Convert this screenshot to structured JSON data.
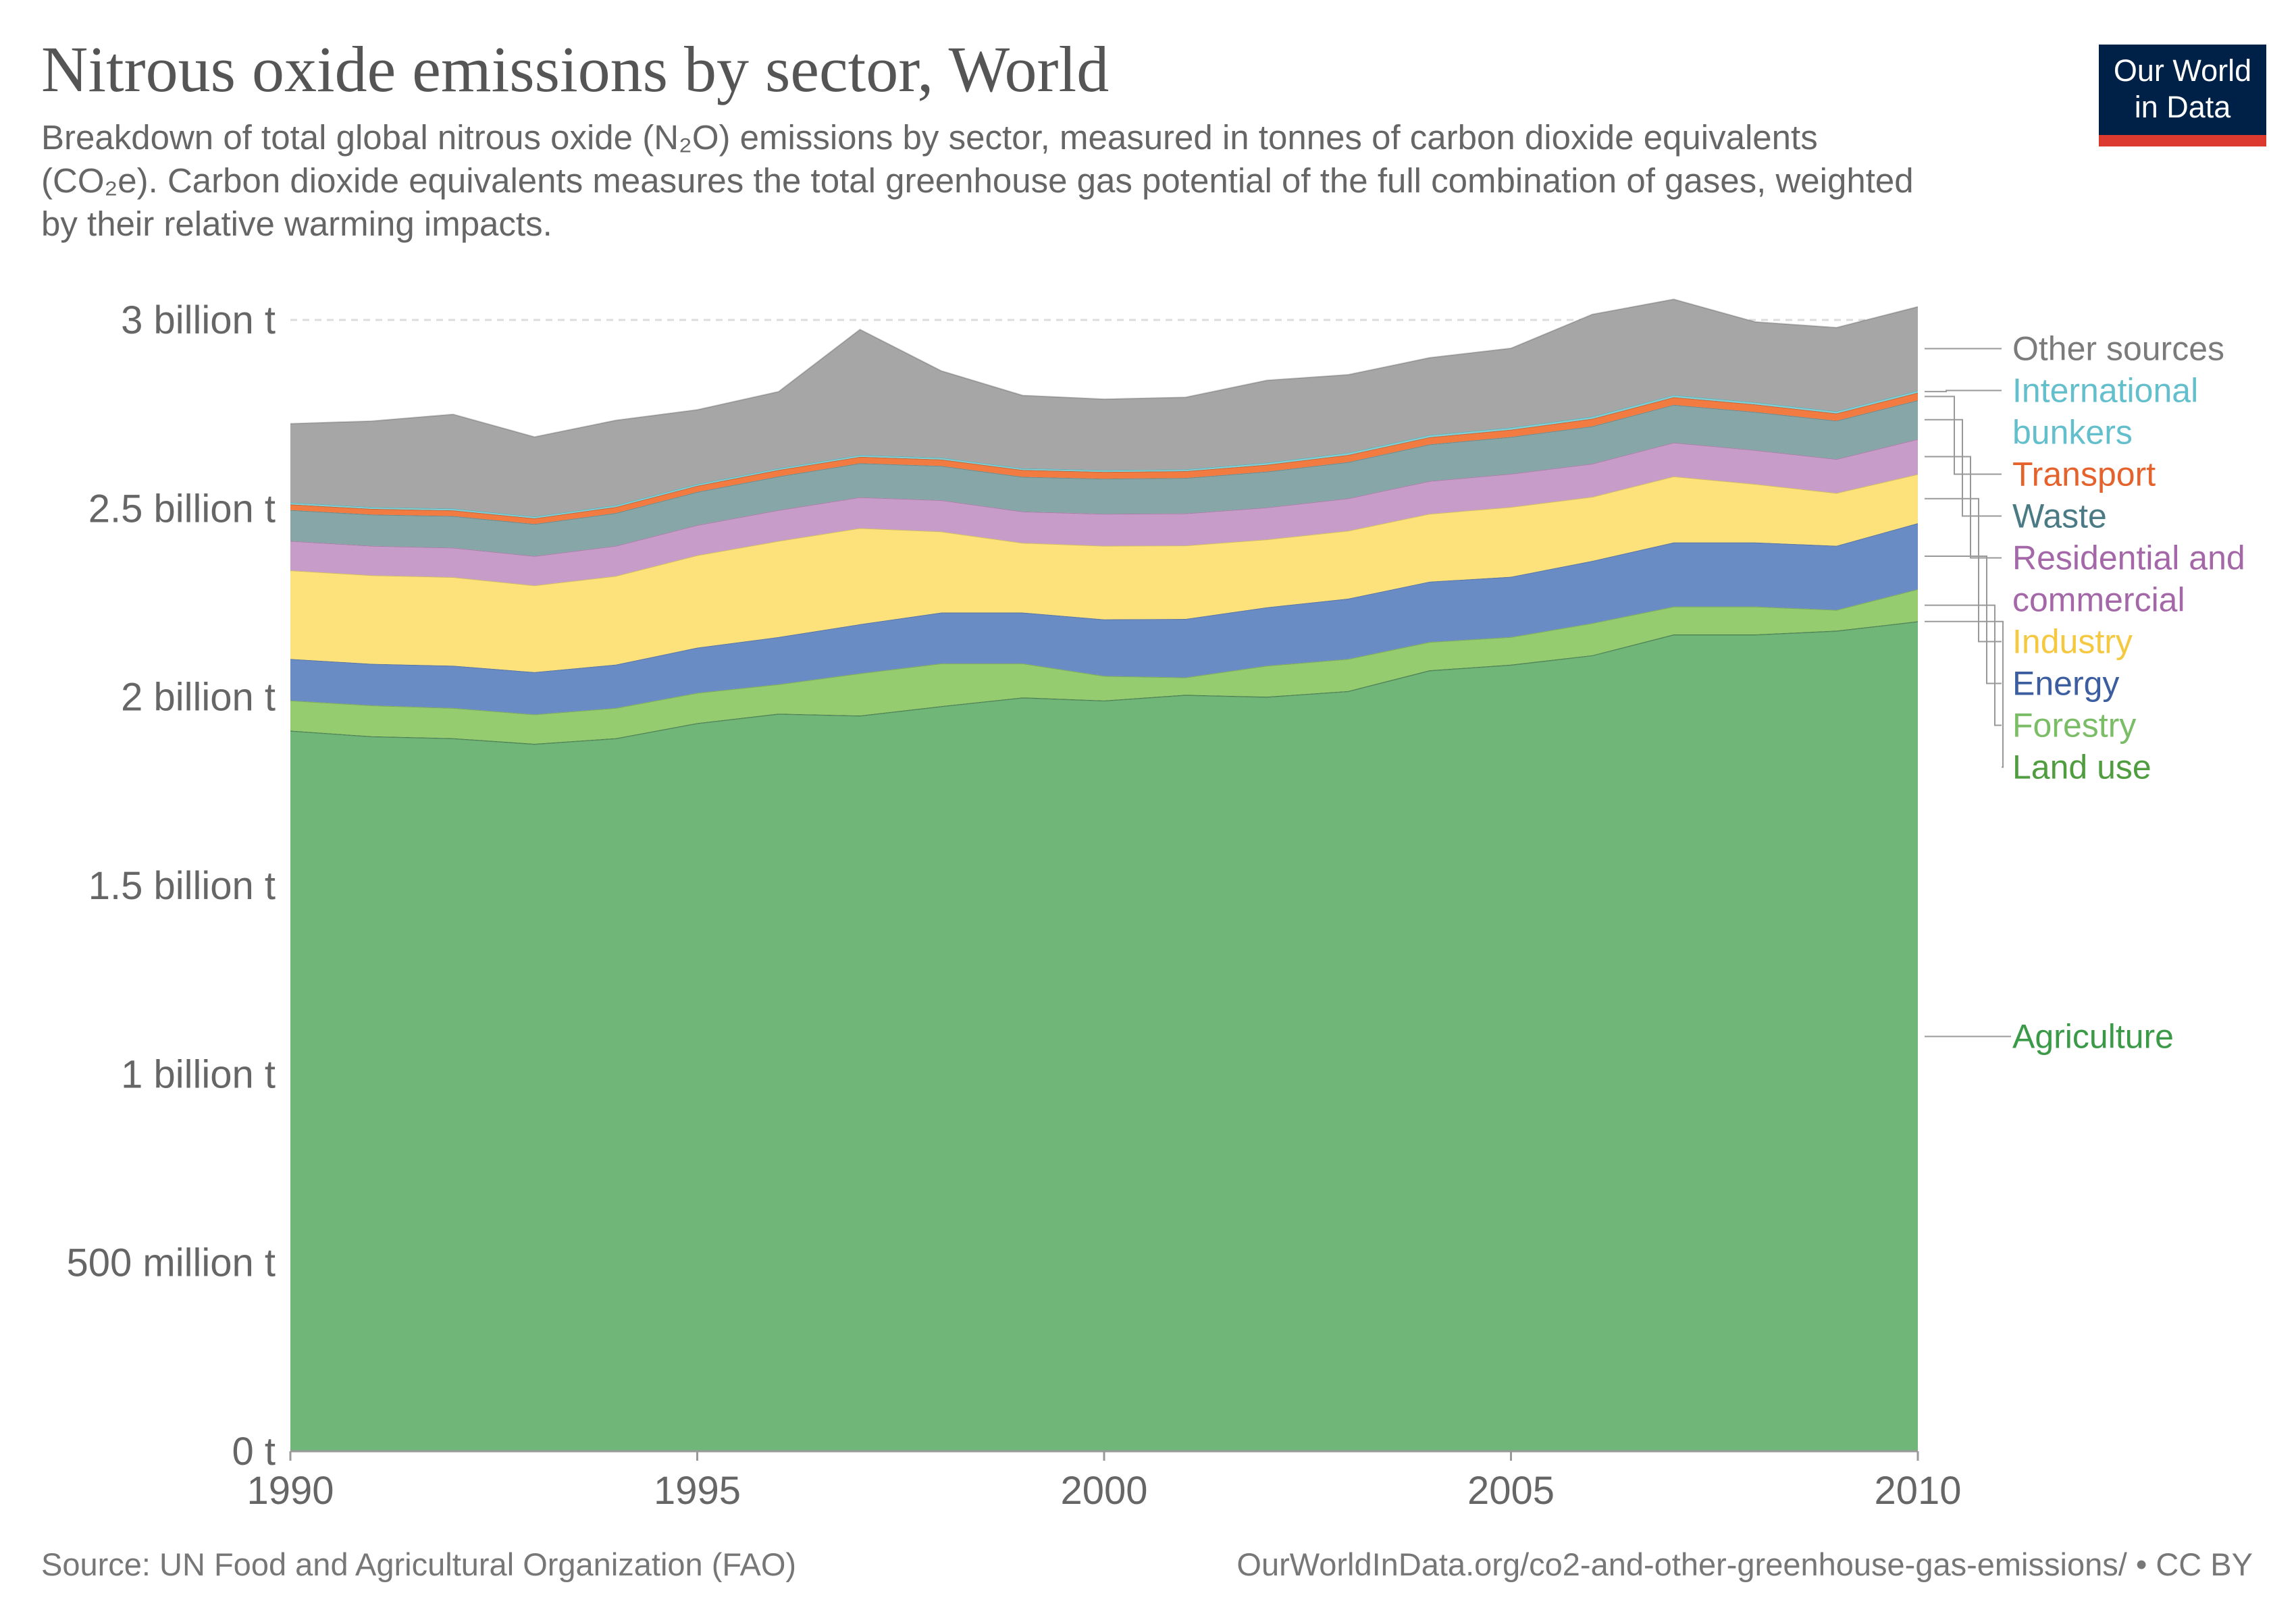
{
  "header": {
    "title": "Nitrous oxide emissions by sector, World",
    "subtitle": "Breakdown of total global nitrous oxide (N₂O) emissions by sector, measured in tonnes of carbon dioxide equivalents (CO₂e). Carbon dioxide equivalents measures the total greenhouse gas potential of the full combination of gases, weighted by their relative warming impacts."
  },
  "logo": {
    "line1": "Our World",
    "line2": "in Data"
  },
  "footer": {
    "source": "Source: UN Food and Agricultural Organization (FAO)",
    "url": "OurWorldInData.org/co2-and-other-greenhouse-gas-emissions/ • CC BY"
  },
  "chart_data": {
    "type": "area",
    "stacked": true,
    "x": [
      1990,
      1991,
      1992,
      1993,
      1994,
      1995,
      1996,
      1997,
      1998,
      1999,
      2000,
      2001,
      2002,
      2003,
      2004,
      2005,
      2006,
      2007,
      2008,
      2009,
      2010
    ],
    "xlim": [
      1990,
      2010
    ],
    "ylim": [
      0,
      3000000000
    ],
    "x_ticks": [
      {
        "value": 1990,
        "label": "1990"
      },
      {
        "value": 1995,
        "label": "1995"
      },
      {
        "value": 2000,
        "label": "2000"
      },
      {
        "value": 2005,
        "label": "2005"
      },
      {
        "value": 2010,
        "label": "2010"
      }
    ],
    "y_ticks": [
      {
        "value": 0,
        "label": "0 t"
      },
      {
        "value": 500000000,
        "label": "500 million t"
      },
      {
        "value": 1000000000,
        "label": "1 billion t"
      },
      {
        "value": 1500000000,
        "label": "1.5 billion t"
      },
      {
        "value": 2000000000,
        "label": "2 billion t"
      },
      {
        "value": 2500000000,
        "label": "2.5 billion t"
      },
      {
        "value": 3000000000,
        "label": "3 billion t"
      }
    ],
    "grid": true,
    "legend_position": "right",
    "series": [
      {
        "name": "Agriculture",
        "color": "#70b678",
        "label_color": "#3a9a48",
        "values": [
          1910000000,
          1895000000,
          1890000000,
          1875000000,
          1890000000,
          1930000000,
          1955000000,
          1950000000,
          1975000000,
          1998000000,
          1990000000,
          2005000000,
          2000000000,
          2015000000,
          2070000000,
          2085000000,
          2110000000,
          2165000000,
          2165000000,
          2175000000,
          2200000000
        ]
      },
      {
        "name": "Land use",
        "color": "#4a9e54",
        "label_color": "#4f9d3f",
        "values": [
          1000000,
          1000000,
          1000000,
          1000000,
          1000000,
          1000000,
          1000000,
          1000000,
          1000000,
          1000000,
          1000000,
          1000000,
          1000000,
          1000000,
          1000000,
          1000000,
          1000000,
          1000000,
          1000000,
          1000000,
          1000000
        ]
      },
      {
        "name": "Forestry",
        "color": "#95cc6f",
        "label_color": "#7bbd66",
        "values": [
          80000000,
          82000000,
          80000000,
          78000000,
          80000000,
          80000000,
          78000000,
          112000000,
          113000000,
          90000000,
          65000000,
          46000000,
          82000000,
          85000000,
          75000000,
          73000000,
          85000000,
          74000000,
          74000000,
          55000000,
          85000000
        ]
      },
      {
        "name": "Energy",
        "color": "#6a8cc4",
        "label_color": "#3c5ea0",
        "values": [
          110000000,
          110000000,
          112000000,
          112000000,
          115000000,
          120000000,
          125000000,
          130000000,
          135000000,
          135000000,
          150000000,
          155000000,
          155000000,
          160000000,
          160000000,
          160000000,
          165000000,
          170000000,
          170000000,
          170000000,
          175000000
        ]
      },
      {
        "name": "Industry",
        "color": "#fde27b",
        "label_color": "#f5c842",
        "values": [
          235000000,
          235000000,
          235000000,
          230000000,
          235000000,
          245000000,
          255000000,
          255000000,
          215000000,
          185000000,
          195000000,
          195000000,
          180000000,
          180000000,
          180000000,
          185000000,
          170000000,
          175000000,
          155000000,
          140000000,
          130000000
        ]
      },
      {
        "name": "Residential and commercial",
        "color": "#c79cc9",
        "label_color": "#a467a8",
        "values": [
          78000000,
          78000000,
          78000000,
          78000000,
          80000000,
          80000000,
          82000000,
          82000000,
          83000000,
          83000000,
          85000000,
          85000000,
          85000000,
          86000000,
          87000000,
          88000000,
          88000000,
          90000000,
          90000000,
          90000000,
          93000000
        ]
      },
      {
        "name": "Waste",
        "color": "#86a6a7",
        "label_color": "#4a7a84",
        "values": [
          82000000,
          83000000,
          84000000,
          85000000,
          87000000,
          88000000,
          89000000,
          90000000,
          91000000,
          92000000,
          93000000,
          94000000,
          95000000,
          96000000,
          97000000,
          98000000,
          99000000,
          100000000,
          101000000,
          102000000,
          103000000
        ]
      },
      {
        "name": "Transport",
        "color": "#f27b42",
        "label_color": "#e5622c",
        "values": [
          15000000,
          15000000,
          15000000,
          15000000,
          16000000,
          16000000,
          17000000,
          17000000,
          17000000,
          18000000,
          18000000,
          18000000,
          18000000,
          19000000,
          19000000,
          19000000,
          20000000,
          20000000,
          20000000,
          19000000,
          20000000
        ]
      },
      {
        "name": "International bunkers",
        "color": "#7fd0d6",
        "label_color": "#64bfcd",
        "values": [
          5000000,
          5000000,
          5000000,
          5000000,
          5000000,
          5000000,
          5000000,
          5000000,
          5000000,
          5000000,
          5000000,
          5000000,
          6000000,
          6000000,
          6000000,
          6000000,
          6000000,
          6000000,
          6000000,
          6000000,
          6000000
        ]
      },
      {
        "name": "Other sources",
        "color": "#a6a6a6",
        "label_color": "#7b7b7b",
        "values": [
          209000000,
          228000000,
          250000000,
          211000000,
          225000000,
          197000000,
          203000000,
          333000000,
          230000000,
          193000000,
          188000000,
          191000000,
          218000000,
          207000000,
          205000000,
          210000000,
          271000000,
          254000000,
          213000000,
          222000000,
          222000000
        ]
      }
    ]
  }
}
